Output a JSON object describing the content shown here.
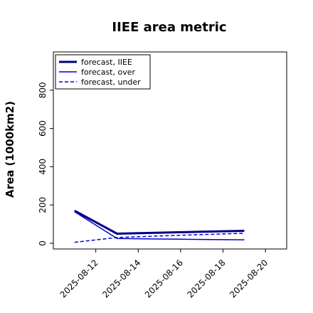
{
  "chart_data": {
    "type": "line",
    "title": "IIEE area metric",
    "ylabel": "Area (1000km2)",
    "xlabel": "",
    "x": [
      "2025-08-11",
      "2025-08-13",
      "2025-08-15",
      "2025-08-17",
      "2025-08-19"
    ],
    "xlim": [
      "2025-08-10",
      "2025-08-21"
    ],
    "ylim": [
      -30,
      1000
    ],
    "yticks": [
      0,
      200,
      400,
      600,
      800
    ],
    "xtick_labels": [
      {
        "label": "2025-08-12",
        "color": "#2e8b2e"
      },
      {
        "label": "2025-08-14",
        "color": "#000000"
      },
      {
        "label": "2025-08-16",
        "color": "#000000"
      },
      {
        "label": "2025-08-18",
        "color": "#000000"
      },
      {
        "label": "2025-08-20",
        "color": "#000000"
      }
    ],
    "series": [
      {
        "name": "forecast, IIEE",
        "values": [
          170,
          50,
          55,
          60,
          65
        ],
        "color": "#00007f",
        "style": "solid",
        "width": "thick"
      },
      {
        "name": "forecast, over",
        "values": [
          165,
          25,
          22,
          20,
          18
        ],
        "color": "#0000cd",
        "style": "solid",
        "width": "thin"
      },
      {
        "name": "forecast, under",
        "values": [
          5,
          30,
          38,
          45,
          52
        ],
        "color": "#0000cd",
        "style": "dashed",
        "width": "thin"
      }
    ],
    "grid": false,
    "legend_position": "top-left"
  }
}
